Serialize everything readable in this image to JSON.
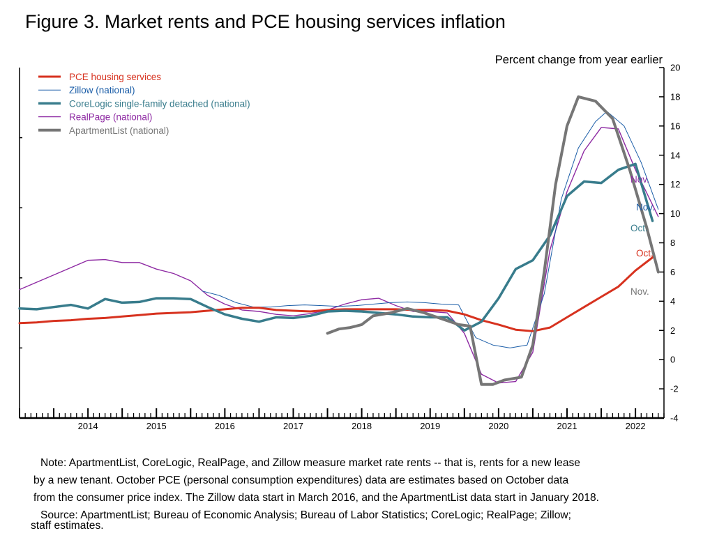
{
  "title": "Figure 3. Market rents and PCE housing services inflation",
  "notes": {
    "note_lines": [
      "Note: ApartmentList, CoreLogic, RealPage, and Zillow measure market rate rents -- that is, rents for a new lease",
      "by a new tenant. October PCE (personal consumption expenditures) data are estimates based on October data",
      "from the consumer price index. The Zillow data start in March 2016, and the ApartmentList data start in January 2018."
    ],
    "source_lines": [
      "Source: ApartmentList; Bureau of Economic Analysis; Bureau of Labor Statistics; CoreLogic; RealPage; Zillow;",
      "staff estimates."
    ]
  },
  "chart_data": {
    "type": "line",
    "title": "Figure 3. Market rents and PCE housing services inflation",
    "ylabel": "Percent change from year earlier",
    "xlabel": "",
    "x_ticks": [
      "2014",
      "2015",
      "2016",
      "2017",
      "2018",
      "2019",
      "2020",
      "2021",
      "2022"
    ],
    "x_range": [
      "2013-07",
      "2022-12"
    ],
    "y_ticks": [
      -4,
      -2,
      0,
      2,
      4,
      6,
      8,
      10,
      12,
      14,
      16,
      18,
      20
    ],
    "ylim": [
      -4,
      20
    ],
    "legend_position": "top-left",
    "grid": false,
    "series": [
      {
        "name": "PCE housing services",
        "color": "#d7321f",
        "line_width": 3,
        "end_label": "Oct.",
        "points": [
          [
            "2013-07",
            2.5
          ],
          [
            "2013-10",
            2.55
          ],
          [
            "2014-01",
            2.65
          ],
          [
            "2014-04",
            2.7
          ],
          [
            "2014-07",
            2.8
          ],
          [
            "2014-10",
            2.85
          ],
          [
            "2015-01",
            2.95
          ],
          [
            "2015-04",
            3.05
          ],
          [
            "2015-07",
            3.15
          ],
          [
            "2015-10",
            3.2
          ],
          [
            "2016-01",
            3.25
          ],
          [
            "2016-04",
            3.35
          ],
          [
            "2016-07",
            3.45
          ],
          [
            "2016-10",
            3.55
          ],
          [
            "2017-01",
            3.55
          ],
          [
            "2017-04",
            3.4
          ],
          [
            "2017-07",
            3.35
          ],
          [
            "2017-10",
            3.3
          ],
          [
            "2018-01",
            3.4
          ],
          [
            "2018-04",
            3.45
          ],
          [
            "2018-07",
            3.45
          ],
          [
            "2018-10",
            3.45
          ],
          [
            "2019-01",
            3.45
          ],
          [
            "2019-04",
            3.4
          ],
          [
            "2019-07",
            3.4
          ],
          [
            "2019-10",
            3.35
          ],
          [
            "2020-01",
            3.1
          ],
          [
            "2020-04",
            2.7
          ],
          [
            "2020-07",
            2.4
          ],
          [
            "2020-10",
            2.05
          ],
          [
            "2021-01",
            1.95
          ],
          [
            "2021-04",
            2.2
          ],
          [
            "2021-07",
            2.9
          ],
          [
            "2021-10",
            3.6
          ],
          [
            "2022-01",
            4.3
          ],
          [
            "2022-04",
            5.0
          ],
          [
            "2022-07",
            6.1
          ],
          [
            "2022-10",
            7.0
          ]
        ]
      },
      {
        "name": "Zillow (national)",
        "color": "#1c5ea8",
        "line_width": 1,
        "end_label": "Nov.",
        "points": [
          [
            "2016-03",
            4.7
          ],
          [
            "2016-06",
            4.4
          ],
          [
            "2016-09",
            3.9
          ],
          [
            "2016-12",
            3.6
          ],
          [
            "2017-03",
            3.6
          ],
          [
            "2017-06",
            3.7
          ],
          [
            "2017-09",
            3.75
          ],
          [
            "2017-12",
            3.7
          ],
          [
            "2018-03",
            3.65
          ],
          [
            "2018-06",
            3.7
          ],
          [
            "2018-09",
            3.8
          ],
          [
            "2018-12",
            3.9
          ],
          [
            "2019-03",
            3.95
          ],
          [
            "2019-06",
            3.9
          ],
          [
            "2019-09",
            3.8
          ],
          [
            "2019-12",
            3.75
          ],
          [
            "2020-03",
            1.5
          ],
          [
            "2020-06",
            1.0
          ],
          [
            "2020-09",
            0.8
          ],
          [
            "2020-12",
            1.0
          ],
          [
            "2021-03",
            4.5
          ],
          [
            "2021-06",
            11.0
          ],
          [
            "2021-09",
            14.5
          ],
          [
            "2021-12",
            16.3
          ],
          [
            "2022-02",
            17.0
          ],
          [
            "2022-05",
            16.0
          ],
          [
            "2022-08",
            13.5
          ],
          [
            "2022-11",
            10.3
          ]
        ]
      },
      {
        "name": "CoreLogic single-family detached (national)",
        "color": "#387c8c",
        "line_width": 3.5,
        "end_label": "Oct.",
        "points": [
          [
            "2013-07",
            3.5
          ],
          [
            "2013-10",
            3.45
          ],
          [
            "2014-01",
            3.6
          ],
          [
            "2014-04",
            3.75
          ],
          [
            "2014-07",
            3.5
          ],
          [
            "2014-10",
            4.15
          ],
          [
            "2015-01",
            3.9
          ],
          [
            "2015-04",
            3.95
          ],
          [
            "2015-07",
            4.2
          ],
          [
            "2015-10",
            4.2
          ],
          [
            "2016-01",
            4.15
          ],
          [
            "2016-04",
            3.6
          ],
          [
            "2016-07",
            3.1
          ],
          [
            "2016-10",
            2.8
          ],
          [
            "2017-01",
            2.6
          ],
          [
            "2017-04",
            2.9
          ],
          [
            "2017-07",
            2.85
          ],
          [
            "2017-10",
            3.0
          ],
          [
            "2018-01",
            3.3
          ],
          [
            "2018-04",
            3.35
          ],
          [
            "2018-07",
            3.3
          ],
          [
            "2018-10",
            3.2
          ],
          [
            "2019-01",
            3.1
          ],
          [
            "2019-04",
            2.95
          ],
          [
            "2019-07",
            2.9
          ],
          [
            "2019-10",
            2.9
          ],
          [
            "2020-01",
            2.0
          ],
          [
            "2020-04",
            2.6
          ],
          [
            "2020-07",
            4.2
          ],
          [
            "2020-10",
            6.2
          ],
          [
            "2021-01",
            6.8
          ],
          [
            "2021-04",
            8.5
          ],
          [
            "2021-07",
            11.2
          ],
          [
            "2021-10",
            12.2
          ],
          [
            "2022-01",
            12.1
          ],
          [
            "2022-04",
            13.0
          ],
          [
            "2022-07",
            13.4
          ],
          [
            "2022-10",
            9.5
          ]
        ]
      },
      {
        "name": "RealPage (national)",
        "color": "#8e2aa3",
        "line_width": 1.4,
        "end_label": "Nov.",
        "points": [
          [
            "2013-07",
            4.8
          ],
          [
            "2013-10",
            5.3
          ],
          [
            "2014-01",
            5.8
          ],
          [
            "2014-04",
            6.3
          ],
          [
            "2014-07",
            6.8
          ],
          [
            "2014-10",
            6.85
          ],
          [
            "2015-01",
            6.65
          ],
          [
            "2015-04",
            6.65
          ],
          [
            "2015-07",
            6.2
          ],
          [
            "2015-10",
            5.9
          ],
          [
            "2016-01",
            5.4
          ],
          [
            "2016-04",
            4.4
          ],
          [
            "2016-07",
            3.8
          ],
          [
            "2016-10",
            3.4
          ],
          [
            "2017-01",
            3.3
          ],
          [
            "2017-04",
            3.1
          ],
          [
            "2017-07",
            3.0
          ],
          [
            "2017-10",
            3.15
          ],
          [
            "2018-01",
            3.4
          ],
          [
            "2018-04",
            3.8
          ],
          [
            "2018-07",
            4.1
          ],
          [
            "2018-10",
            4.2
          ],
          [
            "2019-01",
            3.7
          ],
          [
            "2019-04",
            3.3
          ],
          [
            "2019-07",
            3.3
          ],
          [
            "2019-10",
            3.2
          ],
          [
            "2020-01",
            1.8
          ],
          [
            "2020-04",
            -1.0
          ],
          [
            "2020-07",
            -1.6
          ],
          [
            "2020-10",
            -1.5
          ],
          [
            "2021-01",
            0.5
          ],
          [
            "2021-04",
            7.5
          ],
          [
            "2021-07",
            11.5
          ],
          [
            "2021-10",
            14.3
          ],
          [
            "2022-01",
            15.9
          ],
          [
            "2022-04",
            15.8
          ],
          [
            "2022-07",
            13.0
          ],
          [
            "2022-11",
            9.8
          ]
        ]
      },
      {
        "name": "ApartmentList (national)",
        "color": "#767676",
        "line_width": 4,
        "end_label": "Nov.",
        "points": [
          [
            "2018-01",
            1.8
          ],
          [
            "2018-03",
            2.1
          ],
          [
            "2018-05",
            2.2
          ],
          [
            "2018-07",
            2.4
          ],
          [
            "2018-09",
            3.0
          ],
          [
            "2018-12",
            3.2
          ],
          [
            "2019-03",
            3.5
          ],
          [
            "2019-06",
            3.2
          ],
          [
            "2019-09",
            2.8
          ],
          [
            "2019-12",
            2.4
          ],
          [
            "2020-02",
            2.3
          ],
          [
            "2020-04",
            -1.7
          ],
          [
            "2020-06",
            -1.7
          ],
          [
            "2020-08",
            -1.4
          ],
          [
            "2020-11",
            -1.2
          ],
          [
            "2021-01",
            1.0
          ],
          [
            "2021-03",
            6.0
          ],
          [
            "2021-05",
            12.0
          ],
          [
            "2021-07",
            16.0
          ],
          [
            "2021-09",
            18.0
          ],
          [
            "2021-12",
            17.7
          ],
          [
            "2022-03",
            16.5
          ],
          [
            "2022-06",
            13.0
          ],
          [
            "2022-09",
            9.0
          ],
          [
            "2022-11",
            6.0
          ]
        ]
      }
    ]
  }
}
